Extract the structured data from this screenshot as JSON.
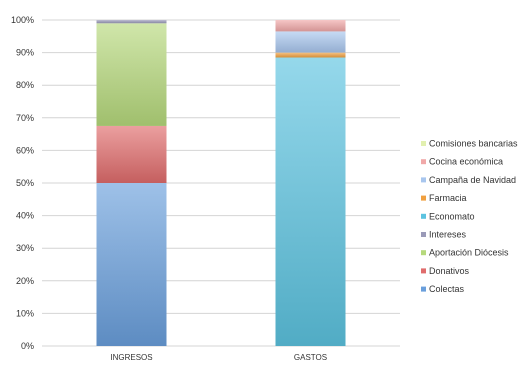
{
  "chart_data": {
    "type": "bar",
    "stacked": "percent",
    "categories": [
      "INGRESOS",
      "GASTOS"
    ],
    "ylim": [
      0,
      100
    ],
    "y_ticks": [
      "0%",
      "10%",
      "20%",
      "30%",
      "40%",
      "50%",
      "60%",
      "70%",
      "80%",
      "90%",
      "100%"
    ],
    "grid": true,
    "legend_position": "right",
    "series": [
      {
        "name": "Colectas",
        "values": [
          50.0,
          0
        ],
        "color": "#6a9fdc"
      },
      {
        "name": "Donativos",
        "values": [
          17.5,
          0
        ],
        "color": "#e06c6c"
      },
      {
        "name": "Aportación Diócesis",
        "values": [
          31.5,
          0
        ],
        "color": "#b6d97c"
      },
      {
        "name": "Intereses",
        "values": [
          1.0,
          0
        ],
        "color": "#9a9ab8"
      },
      {
        "name": "Economato",
        "values": [
          0,
          88.5
        ],
        "color": "#5cc3e0"
      },
      {
        "name": "Farmacia",
        "values": [
          0,
          1.5
        ],
        "color": "#f0a040"
      },
      {
        "name": "Campaña de Navidad",
        "values": [
          0,
          6.5
        ],
        "color": "#a8c6ee"
      },
      {
        "name": "Cocina económica",
        "values": [
          0,
          3.5
        ],
        "color": "#f0a8a8"
      },
      {
        "name": "Comisiones bancarias",
        "values": [
          0,
          0
        ],
        "color": "#e2f0b0"
      }
    ],
    "legend_order": [
      "Comisiones bancarias",
      "Cocina económica",
      "Campaña de Navidad",
      "Farmacia",
      "Economato",
      "Intereses",
      "Aportación Diócesis",
      "Donativos",
      "Colectas"
    ]
  }
}
